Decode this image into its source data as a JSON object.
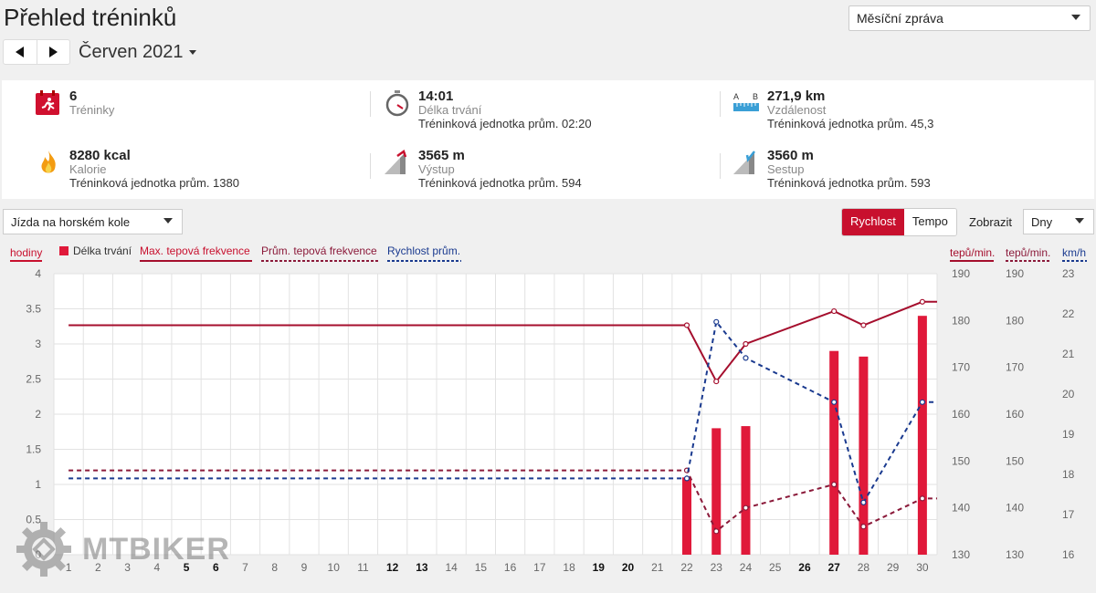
{
  "title": "Přehled tréninků",
  "report_select": {
    "value": "Měsíční zpráva"
  },
  "month": {
    "label": "Červen 2021"
  },
  "stats": {
    "workouts": {
      "value": "6",
      "label": "Tréninky"
    },
    "duration": {
      "value": "14:01",
      "label": "Délka trvání",
      "avg": "Tréninková jednotka prům. 02:20"
    },
    "distance": {
      "value": "271,9 km",
      "label": "Vzdálenost",
      "avg": "Tréninková jednotka prům. 45,3"
    },
    "calories": {
      "value": "8280 kcal",
      "label": "Kalorie",
      "avg": "Tréninková jednotka prům. 1380"
    },
    "ascent": {
      "value": "3565 m",
      "label": "Výstup",
      "avg": "Tréninková jednotka prům. 594"
    },
    "descent": {
      "value": "3560 m",
      "label": "Sestup",
      "avg": "Tréninková jednotka prům. 593"
    }
  },
  "controls": {
    "activity": "Jízda na horském kole",
    "speed_button": "Rychlost",
    "pace_button": "Tempo",
    "show_label": "Zobrazit",
    "period": "Dny"
  },
  "colors": {
    "accent": "#c8102e",
    "maxhr": "#a50e2d",
    "avghr": "#8b1a3a",
    "speed": "#1a3a8f"
  },
  "watermark": "MTBIKER",
  "chart_data": {
    "type": "bar",
    "legend": {
      "duration": "Délka trvání",
      "max_hr": "Max. tepová frekvence",
      "avg_hr": "Prům. tepová frekvence",
      "speed": "Rychlost prům."
    },
    "axis_labels": {
      "left": "hodiny",
      "right1": "tepů/min.",
      "right2": "tepů/min.",
      "right3": "km/h"
    },
    "x": [
      "1",
      "2",
      "3",
      "4",
      "5",
      "6",
      "7",
      "8",
      "9",
      "10",
      "11",
      "12",
      "13",
      "14",
      "15",
      "16",
      "17",
      "18",
      "19",
      "20",
      "21",
      "22",
      "23",
      "24",
      "25",
      "26",
      "27",
      "28",
      "29",
      "30"
    ],
    "bold_days": [
      "5",
      "6",
      "12",
      "13",
      "19",
      "20",
      "26",
      "27"
    ],
    "y_left": {
      "min": 0,
      "max": 4,
      "ticks": [
        "0",
        "0.5",
        "1",
        "1.5",
        "2",
        "2.5",
        "3",
        "3.5",
        "4"
      ]
    },
    "y_hr": {
      "min": 130,
      "max": 190,
      "ticks": [
        "130",
        "140",
        "150",
        "160",
        "170",
        "180",
        "190"
      ]
    },
    "y_speed": {
      "min": 16,
      "max": 23,
      "ticks": [
        "16",
        "17",
        "18",
        "19",
        "20",
        "21",
        "22",
        "23"
      ]
    },
    "duration_bars": [
      {
        "day": 22,
        "hours": 1.1
      },
      {
        "day": 23,
        "hours": 1.8
      },
      {
        "day": 24,
        "hours": 1.83
      },
      {
        "day": 27,
        "hours": 2.9
      },
      {
        "day": 28,
        "hours": 2.82
      },
      {
        "day": 30,
        "hours": 3.4
      }
    ],
    "max_hr": [
      {
        "day": 1,
        "v": 179
      },
      {
        "day": 22,
        "v": 179
      },
      {
        "day": 23,
        "v": 167
      },
      {
        "day": 24,
        "v": 175
      },
      {
        "day": 27,
        "v": 182
      },
      {
        "day": 28,
        "v": 179
      },
      {
        "day": 30,
        "v": 184
      },
      {
        "day": 30.5,
        "v": 184
      }
    ],
    "avg_hr": [
      {
        "day": 1,
        "v": 148
      },
      {
        "day": 22,
        "v": 148
      },
      {
        "day": 23,
        "v": 135
      },
      {
        "day": 24,
        "v": 140
      },
      {
        "day": 27,
        "v": 145
      },
      {
        "day": 28,
        "v": 136
      },
      {
        "day": 30,
        "v": 142
      },
      {
        "day": 30.5,
        "v": 142
      }
    ],
    "speed": [
      {
        "day": 1,
        "v": 17.9
      },
      {
        "day": 22,
        "v": 17.9
      },
      {
        "day": 23,
        "v": 21.8
      },
      {
        "day": 24,
        "v": 20.9
      },
      {
        "day": 27,
        "v": 19.8
      },
      {
        "day": 28,
        "v": 17.3
      },
      {
        "day": 30,
        "v": 19.8
      },
      {
        "day": 30.5,
        "v": 19.8
      }
    ]
  }
}
